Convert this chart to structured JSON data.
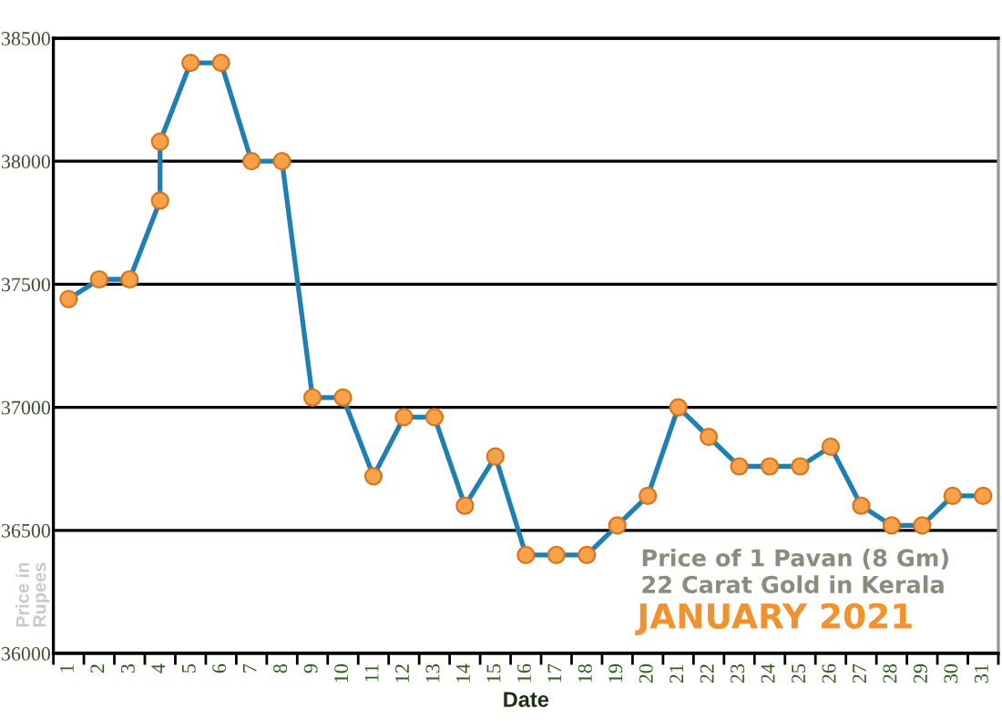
{
  "chart_data": {
    "type": "line",
    "title": "Price of 1 Pavan (8 Gm)",
    "subtitle": "22 Carat Gold in Kerala",
    "annotations": [
      "JANUARY 2021"
    ],
    "xlabel": "Date",
    "ylabel": "Price in\nRupees",
    "x": [
      1,
      2,
      3,
      4,
      4,
      5,
      6,
      7,
      8,
      9,
      10,
      11,
      12,
      13,
      14,
      15,
      16,
      17,
      18,
      19,
      20,
      21,
      22,
      23,
      24,
      25,
      26,
      27,
      28,
      29,
      30,
      31
    ],
    "series": [
      {
        "color": "#1f7fb2",
        "colors": [
          "#f7a24a",
          "#f7a24a",
          "#f7a24a",
          "#f7a24a",
          "#f7a24a",
          "#f7a24a",
          "#f7a24a",
          "#f7a24a",
          "#f7a24a",
          "#f7a24a",
          "#f7a24a",
          "#f7a24a",
          "#f7a24a",
          "#f7a24a",
          "#f7a24a",
          "#f7a24a",
          "#f7a24a",
          "#f7a24a",
          "#f7a24a",
          "#f7a24a",
          "#f7a24a",
          "#f7a24a",
          "#f7a24a",
          "#f7a24a",
          "#f7a24a",
          "#f7a24a",
          "#f7a24a",
          "#f7a24a",
          "#f7a24a",
          "#f7a24a",
          "#f7a24a",
          "#f7a24a"
        ],
        "values": [
          37440,
          37520,
          37520,
          37840,
          38080,
          38400,
          38400,
          38000,
          38000,
          37040,
          37040,
          36720,
          36960,
          36960,
          36600,
          36800,
          36400,
          36400,
          36400,
          36520,
          36640,
          37000,
          36880,
          36760,
          36760,
          36760,
          36840,
          36600,
          36520,
          36520,
          36640,
          36640
        ]
      }
    ],
    "xlim": [
      0.5,
      31.5
    ],
    "xticks": [
      {
        "value": 0.5,
        "label": null
      },
      1,
      {
        "value": 1.5,
        "label": null
      },
      2,
      {
        "value": 2.5,
        "label": null
      },
      3,
      {
        "value": 3.5,
        "label": null
      },
      4,
      {
        "value": 4.5,
        "label": null
      },
      5,
      {
        "value": 5.5,
        "label": null
      },
      6,
      {
        "value": 6.5,
        "label": null
      },
      7,
      {
        "value": 7.5,
        "label": null
      },
      8,
      {
        "value": 8.5,
        "label": null
      },
      9,
      {
        "value": 9.5,
        "label": null
      },
      10,
      {
        "value": 10.5,
        "label": null
      },
      11,
      {
        "value": 11.5,
        "label": null
      },
      12,
      {
        "value": 12.5,
        "label": null
      },
      13,
      {
        "value": 13.5,
        "label": null
      },
      14,
      {
        "value": 14.5,
        "label": null
      },
      15,
      {
        "value": 15.5,
        "label": null
      },
      16,
      {
        "value": 16.5,
        "label": null
      },
      17,
      {
        "value": 17.5,
        "label": null
      },
      18,
      {
        "value": 18.5,
        "label": null
      },
      19,
      {
        "value": 19.5,
        "label": null
      },
      20,
      {
        "value": 20.5,
        "label": null
      },
      21,
      {
        "value": 21.5,
        "label": null
      },
      22,
      {
        "value": 22.5,
        "label": null
      },
      23,
      {
        "value": 23.5,
        "label": null
      },
      24,
      {
        "value": 24.5,
        "label": null
      },
      25,
      {
        "value": 25.5,
        "label": null
      },
      26,
      {
        "value": 26.5,
        "label": null
      },
      27,
      {
        "value": 27.5,
        "label": null
      },
      28,
      {
        "value": 28.5,
        "label": null
      },
      29,
      {
        "value": 29.5,
        "label": null
      },
      30,
      {
        "value": 30.5,
        "label": null
      },
      31,
      {
        "value": 31.5,
        "label": null
      }
    ],
    "ylim": [
      36000,
      38500
    ],
    "yticks": [
      36000,
      36500,
      37000,
      37500,
      38000,
      38500
    ],
    "grid": "y",
    "marker": "circle",
    "line_style": "solid"
  }
}
